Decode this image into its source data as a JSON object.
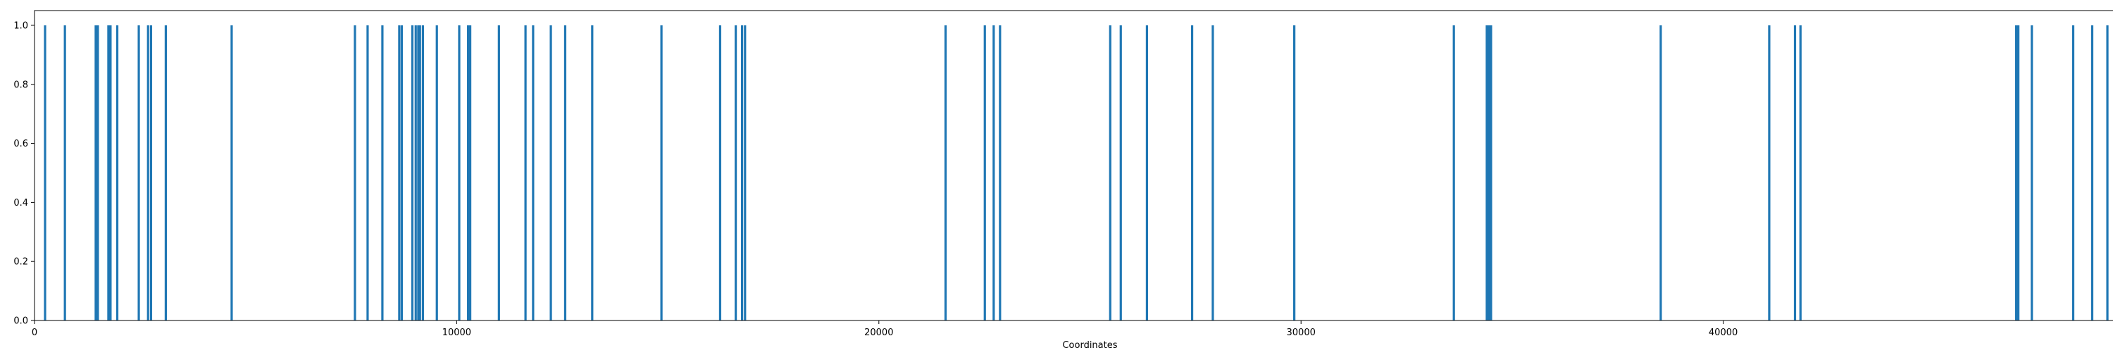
{
  "chart_data": {
    "type": "bar",
    "title": "",
    "xlabel": "Coordinates",
    "ylabel": "",
    "xlim": [
      0,
      50000
    ],
    "ylim": [
      0,
      1.05
    ],
    "grid": false,
    "bar_color": "#1f77b4",
    "x_ticks": [
      0,
      10000,
      20000,
      30000,
      40000,
      50000
    ],
    "y_ticks": [
      0.0,
      0.2,
      0.4,
      0.6,
      0.8,
      1.0
    ],
    "x_tick_labels": [
      "0",
      "10000",
      "20000",
      "30000",
      "40000",
      "50000"
    ],
    "y_tick_labels": [
      "0.0",
      "0.2",
      "0.4",
      "0.6",
      "0.8",
      "1.0"
    ],
    "x": [
      250,
      720,
      1450,
      1500,
      1750,
      1800,
      1960,
      2470,
      2690,
      2760,
      3110,
      4670,
      7590,
      7890,
      8240,
      8640,
      8700,
      8950,
      9030,
      9090,
      9130,
      9200,
      9530,
      10060,
      10270,
      10320,
      11000,
      11630,
      11810,
      12230,
      12570,
      13210,
      14850,
      16240,
      16610,
      16760,
      16830,
      21580,
      22510,
      22720,
      22870,
      25480,
      25730,
      26350,
      27420,
      27910,
      29840,
      33620,
      34400,
      34450,
      34500,
      38520,
      41090,
      41700,
      41830,
      46940,
      46990,
      47310,
      48290,
      48740,
      49100,
      49930
    ],
    "values": [
      1,
      1,
      1,
      1,
      1,
      1,
      1,
      1,
      1,
      1,
      1,
      1,
      1,
      1,
      1,
      1,
      1,
      1,
      1,
      1,
      1,
      1,
      1,
      1,
      1,
      1,
      1,
      1,
      1,
      1,
      1,
      1,
      1,
      1,
      1,
      1,
      1,
      1,
      1,
      1,
      1,
      1,
      1,
      1,
      1,
      1,
      1,
      1,
      1,
      1,
      1,
      1,
      1,
      1,
      1,
      1,
      1,
      1,
      1,
      1,
      1,
      1
    ]
  }
}
